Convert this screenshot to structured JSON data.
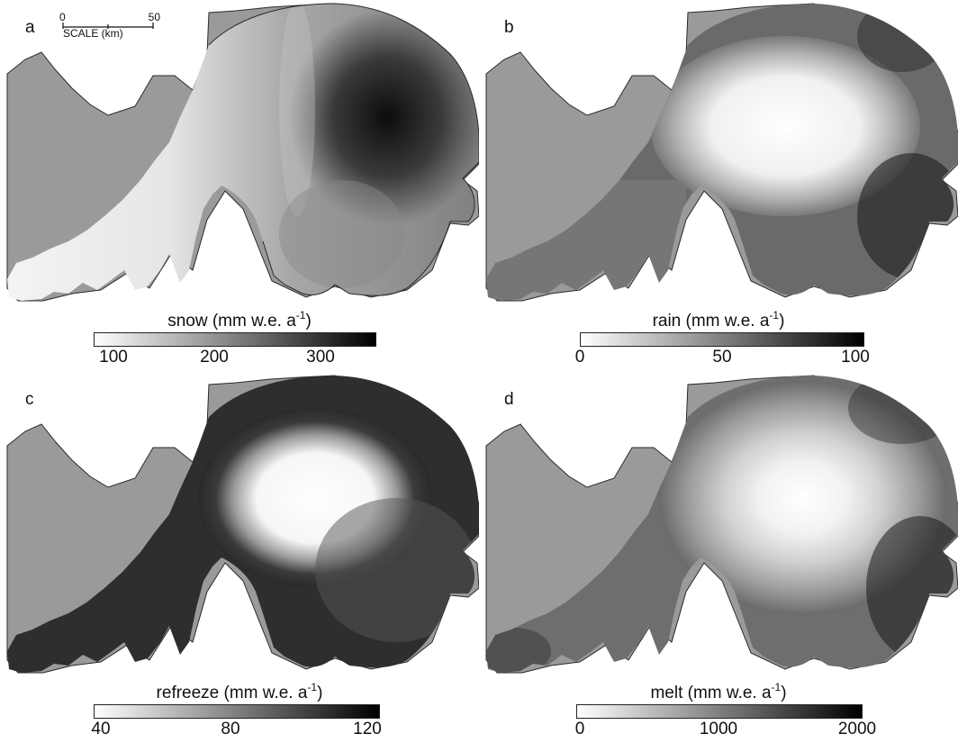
{
  "scalebar": {
    "start": "0",
    "end": "50",
    "label": "SCALE (km)"
  },
  "colors": {
    "land": "#9a9a9a",
    "coast": "#2a2a2a",
    "background": "#ffffff"
  },
  "panels": [
    {
      "letter": "a",
      "title_name": "snow",
      "title_units": "(mm w.e. a",
      "title_exp": "-1",
      "title_close": ")",
      "ticks": [
        "100",
        "200",
        "300"
      ],
      "ramp": "light-to-dark",
      "icecap_field": "snow accumulation, darkest in the north-east"
    },
    {
      "letter": "b",
      "title_name": "rain",
      "title_units": "(mm w.e. a",
      "title_exp": "-1",
      "title_close": ")",
      "ticks": [
        "0",
        "50",
        "100"
      ],
      "ramp": "light-to-dark",
      "icecap_field": "rain, light interior, dark margins"
    },
    {
      "letter": "c",
      "title_name": "refreeze",
      "title_units": "(mm w.e. a",
      "title_exp": "-1",
      "title_close": ")",
      "ticks": [
        "40",
        "80",
        "120"
      ],
      "ramp": "light-to-dark",
      "icecap_field": "refreeze, bright interior, dark margins"
    },
    {
      "letter": "d",
      "title_name": "melt",
      "title_units": "(mm w.e. a",
      "title_exp": "-1",
      "title_close": ")",
      "ticks": [
        "0",
        "1000",
        "2000"
      ],
      "ramp": "light-to-dark",
      "icecap_field": "melt, bright interior, dark margins"
    }
  ]
}
